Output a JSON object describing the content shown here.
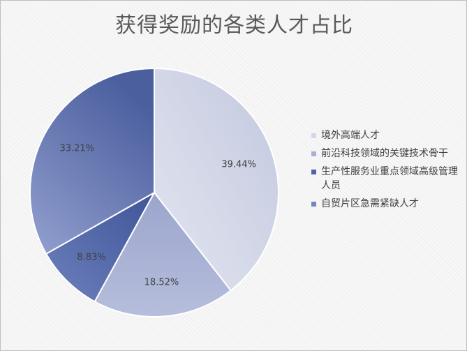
{
  "chart_data": {
    "type": "pie",
    "title": "获得奖励的各类人才占比",
    "categories": [
      "境外高端人才",
      "前沿科技领域的关键技术骨干",
      "生产性服务业重点领域高级管理人员",
      "自贸片区急需紧缺人才"
    ],
    "values": [
      39.44,
      18.52,
      8.83,
      33.21
    ],
    "data_labels": [
      "39.44%",
      "18.52%",
      "8.83%",
      "33.21%"
    ],
    "colors": [
      "#d3d7e8",
      "#a7b0d4",
      "#4e64a4",
      "#7687bd"
    ],
    "legend_position": "right"
  }
}
